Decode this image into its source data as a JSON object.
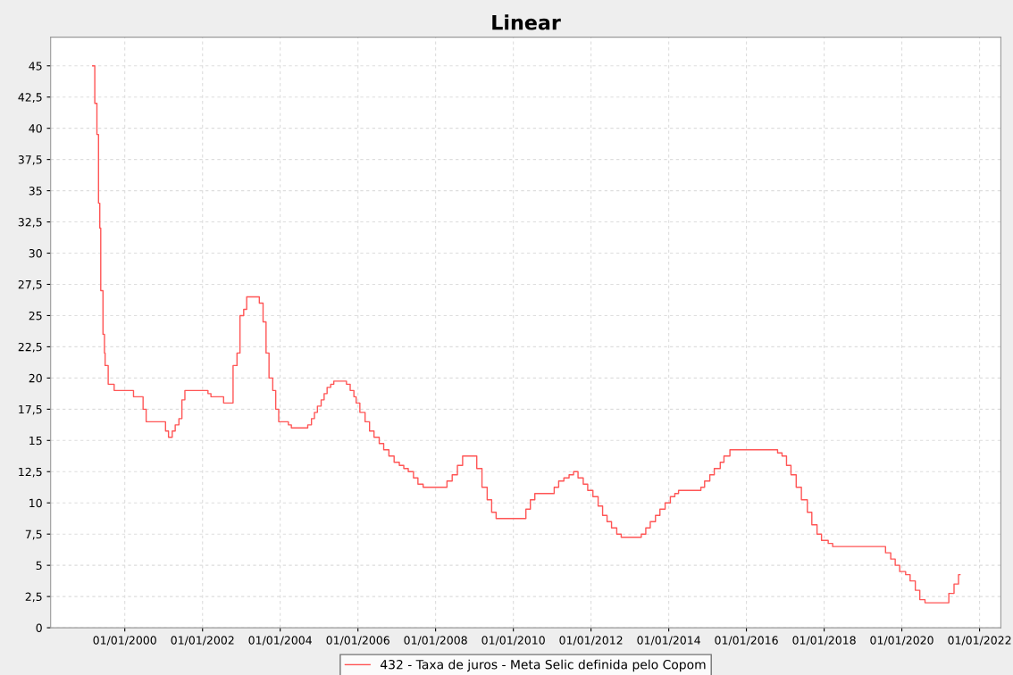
{
  "chart_data": {
    "type": "step",
    "title": "Linear",
    "x": [
      "1999-03-05",
      "1999-03-25",
      "1999-04-14",
      "1999-04-29",
      "1999-05-11",
      "1999-05-20",
      "1999-06-10",
      "1999-06-24",
      "1999-06-30",
      "1999-07-29",
      "1999-09-23",
      "2000-03-23",
      "2000-06-21",
      "2000-07-20",
      "2001-01-18",
      "2001-02-15",
      "2001-03-22",
      "2001-04-19",
      "2001-05-24",
      "2001-06-21",
      "2001-07-19",
      "2002-02-21",
      "2002-03-21",
      "2002-07-18",
      "2002-10-15",
      "2002-11-21",
      "2002-12-19",
      "2003-01-23",
      "2003-02-20",
      "2003-06-19",
      "2003-07-24",
      "2003-08-21",
      "2003-09-18",
      "2003-10-23",
      "2003-11-20",
      "2003-12-18",
      "2004-03-18",
      "2004-04-15",
      "2004-09-16",
      "2004-10-21",
      "2004-11-18",
      "2004-12-16",
      "2005-01-20",
      "2005-02-17",
      "2005-03-17",
      "2005-04-20",
      "2005-05-19",
      "2005-09-15",
      "2005-10-20",
      "2005-11-24",
      "2005-12-15",
      "2006-01-19",
      "2006-03-09",
      "2006-04-20",
      "2006-06-01",
      "2006-07-20",
      "2006-08-31",
      "2006-10-19",
      "2006-12-07",
      "2007-01-25",
      "2007-03-08",
      "2007-04-19",
      "2007-06-07",
      "2007-07-19",
      "2007-09-06",
      "2008-04-17",
      "2008-06-05",
      "2008-07-24",
      "2008-09-11",
      "2009-01-22",
      "2009-03-12",
      "2009-04-30",
      "2009-06-11",
      "2009-07-23",
      "2010-04-29",
      "2010-06-10",
      "2010-07-22",
      "2011-01-20",
      "2011-03-03",
      "2011-04-21",
      "2011-06-09",
      "2011-07-21",
      "2011-09-01",
      "2011-10-20",
      "2011-12-01",
      "2012-01-19",
      "2012-03-08",
      "2012-04-19",
      "2012-05-31",
      "2012-07-12",
      "2012-08-30",
      "2012-10-11",
      "2013-04-18",
      "2013-05-30",
      "2013-07-11",
      "2013-08-29",
      "2013-10-10",
      "2013-11-28",
      "2014-01-16",
      "2014-02-27",
      "2014-04-03",
      "2014-10-30",
      "2014-12-04",
      "2015-01-22",
      "2015-03-05",
      "2015-04-30",
      "2015-06-04",
      "2015-07-30",
      "2016-10-20",
      "2016-12-01",
      "2017-01-12",
      "2017-02-23",
      "2017-04-13",
      "2017-06-01",
      "2017-07-27",
      "2017-09-07",
      "2017-10-26",
      "2017-12-07",
      "2018-02-08",
      "2018-03-22",
      "2019-08-01",
      "2019-09-19",
      "2019-10-31",
      "2019-12-12",
      "2020-02-06",
      "2020-03-19",
      "2020-05-07",
      "2020-06-18",
      "2020-08-06",
      "2021-03-18",
      "2021-05-06",
      "2021-06-17",
      "2021-07-01"
    ],
    "series": [
      {
        "name": "432 - Taxa de juros - Meta Selic definida pelo Copom",
        "color": "#ff5555",
        "values": [
          45,
          42,
          39.5,
          34,
          32,
          27,
          23.5,
          22,
          21,
          19.5,
          19,
          18.5,
          17.5,
          16.5,
          15.75,
          15.25,
          15.75,
          16.25,
          16.75,
          18.25,
          19,
          18.75,
          18.5,
          18,
          21,
          22,
          25,
          25.5,
          26.5,
          26,
          24.5,
          22,
          20,
          19,
          17.5,
          16.5,
          16.25,
          16,
          16.25,
          16.75,
          17.25,
          17.75,
          18.25,
          18.75,
          19.25,
          19.5,
          19.75,
          19.5,
          19,
          18.5,
          18,
          17.25,
          16.5,
          15.75,
          15.25,
          14.75,
          14.25,
          13.75,
          13.25,
          13,
          12.75,
          12.5,
          12,
          11.5,
          11.25,
          11.75,
          12.25,
          13,
          13.75,
          12.75,
          11.25,
          10.25,
          9.25,
          8.75,
          9.5,
          10.25,
          10.75,
          11.25,
          11.75,
          12,
          12.25,
          12.5,
          12,
          11.5,
          11,
          10.5,
          9.75,
          9,
          8.5,
          8,
          7.5,
          7.25,
          7.5,
          8,
          8.5,
          9,
          9.5,
          10,
          10.5,
          10.75,
          11,
          11.25,
          11.75,
          12.25,
          12.75,
          13.25,
          13.75,
          14.25,
          14,
          13.75,
          13,
          12.25,
          11.25,
          10.25,
          9.25,
          8.25,
          7.5,
          7,
          6.75,
          6.5,
          6,
          5.5,
          5,
          4.5,
          4.25,
          3.75,
          3,
          2.25,
          2,
          2.75,
          3.5,
          4.25,
          4.25
        ]
      }
    ],
    "xlim": [
      "1998-02-03",
      "2022-07-20"
    ],
    "xticks": [
      {
        "value": "2000-01-01",
        "label": "01/01/2000"
      },
      {
        "value": "2002-01-01",
        "label": "01/01/2002"
      },
      {
        "value": "2004-01-01",
        "label": "01/01/2004"
      },
      {
        "value": "2006-01-01",
        "label": "01/01/2006"
      },
      {
        "value": "2008-01-01",
        "label": "01/01/2008"
      },
      {
        "value": "2010-01-01",
        "label": "01/01/2010"
      },
      {
        "value": "2012-01-01",
        "label": "01/01/2012"
      },
      {
        "value": "2014-01-01",
        "label": "01/01/2014"
      },
      {
        "value": "2016-01-01",
        "label": "01/01/2016"
      },
      {
        "value": "2018-01-01",
        "label": "01/01/2018"
      },
      {
        "value": "2020-01-01",
        "label": "01/01/2020"
      },
      {
        "value": "2022-01-01",
        "label": "01/01/2022"
      }
    ],
    "ylim": [
      0,
      47.3
    ],
    "yticks": [
      0,
      {
        "value": 2.5,
        "label": "2,5"
      },
      5,
      {
        "value": 7.5,
        "label": "7,5"
      },
      10,
      {
        "value": 12.5,
        "label": "12,5"
      },
      15,
      {
        "value": 17.5,
        "label": "17,5"
      },
      20,
      {
        "value": 22.5,
        "label": "22,5"
      },
      25,
      {
        "value": 27.5,
        "label": "27,5"
      },
      30,
      {
        "value": 32.5,
        "label": "32,5"
      },
      35,
      {
        "value": 37.5,
        "label": "37,5"
      },
      40,
      {
        "value": 42.5,
        "label": "42,5"
      },
      45
    ],
    "grid": true,
    "legend": "bottom",
    "marker": "none",
    "line_style": "solid"
  }
}
